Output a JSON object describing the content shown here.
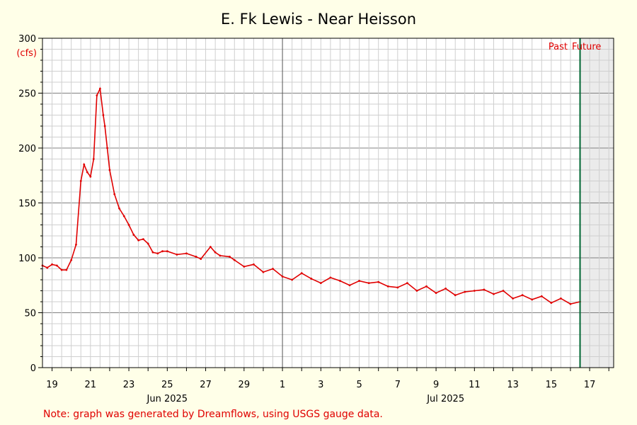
{
  "chart_data": {
    "type": "line",
    "title": "E. Fk Lewis - Near Heisson",
    "ylabel": "(cfs)",
    "xlabel": "",
    "ylim": [
      0,
      300
    ],
    "yticks": [
      "0",
      "50",
      "100",
      "150",
      "200",
      "250",
      "300"
    ],
    "x_range_days": [
      "2025-06-18T12:00",
      "2025-07-18T06:00"
    ],
    "x_tick_labels": [
      "19",
      "21",
      "23",
      "25",
      "27",
      "29",
      "1",
      "3",
      "5",
      "7",
      "9",
      "11",
      "13",
      "15",
      "17"
    ],
    "month_labels": [
      "Jun 2025",
      "Jul 2025"
    ],
    "grid": true,
    "past_label": "Past",
    "future_label": "Future",
    "now": "2025-07-16T12:00",
    "line_color": "#e00000",
    "now_line_color": "#006633",
    "future_shade_color": "#ebebeb",
    "note": "Note: graph was generated by Dreamflows, using USGS gauge data.",
    "series": [
      {
        "x": [
          "2025-06-18T12:00",
          "2025-06-18T18:00",
          "2025-06-19T00:00",
          "2025-06-19T06:00",
          "2025-06-19T12:00",
          "2025-06-19T18:00",
          "2025-06-20T00:00",
          "2025-06-20T06:00",
          "2025-06-20T12:00",
          "2025-06-20T16:00",
          "2025-06-20T20:00",
          "2025-06-21T00:00",
          "2025-06-21T04:00",
          "2025-06-21T08:00",
          "2025-06-21T12:00",
          "2025-06-21T16:00",
          "2025-06-21T18:00",
          "2025-06-21T21:00",
          "2025-06-22T00:00",
          "2025-06-22T06:00",
          "2025-06-22T12:00",
          "2025-06-22T18:00",
          "2025-06-23T00:00",
          "2025-06-23T06:00",
          "2025-06-23T12:00",
          "2025-06-23T18:00",
          "2025-06-24T00:00",
          "2025-06-24T06:00",
          "2025-06-24T12:00",
          "2025-06-24T18:00",
          "2025-06-25T00:00",
          "2025-06-25T12:00",
          "2025-06-26T00:00",
          "2025-06-26T12:00",
          "2025-06-26T18:00",
          "2025-06-27T06:00",
          "2025-06-27T12:00",
          "2025-06-27T18:00",
          "2025-06-28T06:00",
          "2025-06-28T12:00",
          "2025-06-29T00:00",
          "2025-06-29T12:00",
          "2025-06-30T00:00",
          "2025-06-30T12:00",
          "2025-07-01T00:00",
          "2025-07-01T12:00",
          "2025-07-02T00:00",
          "2025-07-02T12:00",
          "2025-07-03T00:00",
          "2025-07-03T12:00",
          "2025-07-04T00:00",
          "2025-07-04T12:00",
          "2025-07-05T00:00",
          "2025-07-05T12:00",
          "2025-07-06T00:00",
          "2025-07-06T12:00",
          "2025-07-07T00:00",
          "2025-07-07T12:00",
          "2025-07-08T00:00",
          "2025-07-08T12:00",
          "2025-07-09T00:00",
          "2025-07-09T12:00",
          "2025-07-10T00:00",
          "2025-07-10T12:00",
          "2025-07-11T00:00",
          "2025-07-11T12:00",
          "2025-07-12T00:00",
          "2025-07-12T12:00",
          "2025-07-13T00:00",
          "2025-07-13T12:00",
          "2025-07-14T00:00",
          "2025-07-14T12:00",
          "2025-07-15T00:00",
          "2025-07-15T12:00",
          "2025-07-16T00:00",
          "2025-07-16T12:00"
        ],
        "values": [
          93,
          91,
          94,
          93,
          89,
          89,
          98,
          112,
          170,
          185,
          178,
          174,
          190,
          248,
          254,
          230,
          220,
          200,
          180,
          158,
          145,
          138,
          130,
          121,
          116,
          117,
          113,
          105,
          104,
          106,
          106,
          103,
          104,
          101,
          99,
          110,
          105,
          102,
          101,
          98,
          92,
          94,
          87,
          90,
          83,
          80,
          86,
          81,
          77,
          82,
          79,
          75,
          79,
          77,
          78,
          74,
          73,
          77,
          70,
          74,
          68,
          72,
          66,
          69,
          70,
          71,
          67,
          70,
          63,
          66,
          62,
          65,
          59,
          63,
          58,
          60
        ]
      }
    ]
  }
}
